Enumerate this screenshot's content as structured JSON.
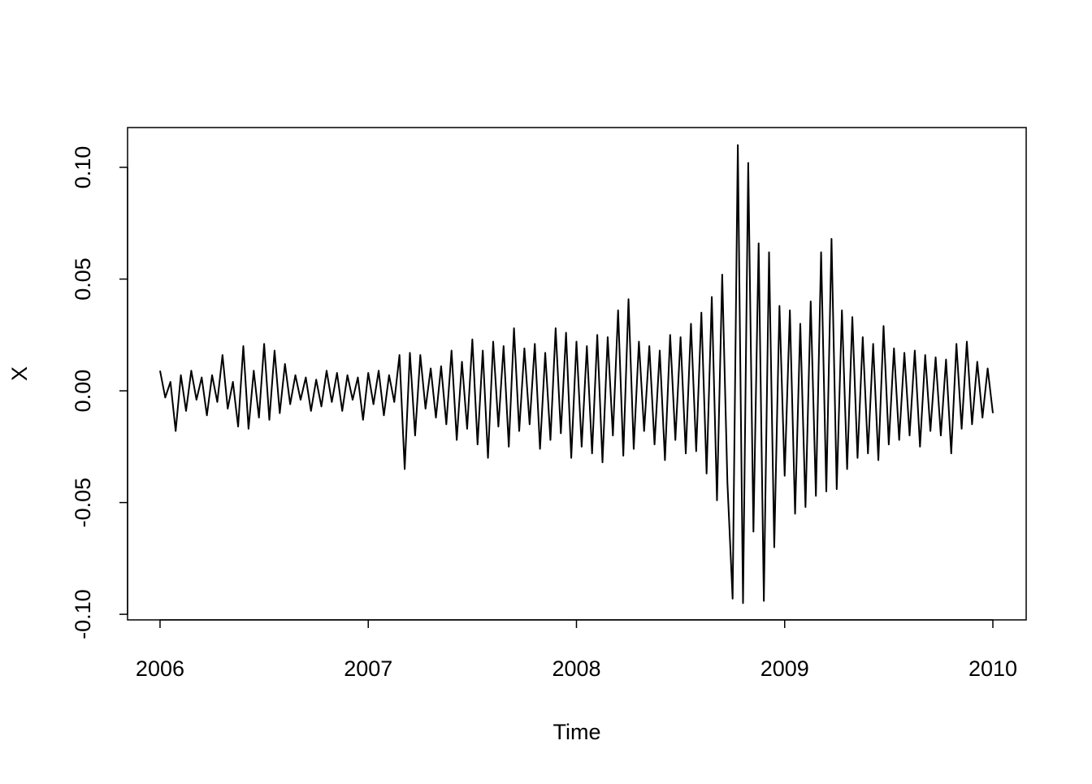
{
  "chart_data": {
    "type": "line",
    "x_label": "Time",
    "y_label": "X",
    "color": "#000000",
    "x": [
      2006,
      2006.025,
      2006.05,
      2006.075,
      2006.1,
      2006.125,
      2006.15,
      2006.175,
      2006.2,
      2006.225,
      2006.25,
      2006.275,
      2006.3,
      2006.325,
      2006.35,
      2006.375,
      2006.4,
      2006.425,
      2006.45,
      2006.475,
      2006.5,
      2006.525,
      2006.55,
      2006.575,
      2006.6,
      2006.625,
      2006.65,
      2006.675,
      2006.7,
      2006.725,
      2006.75,
      2006.775,
      2006.8,
      2006.825,
      2006.85,
      2006.875,
      2006.9,
      2006.925,
      2006.95,
      2006.975,
      2007,
      2007.025,
      2007.05,
      2007.075,
      2007.1,
      2007.125,
      2007.15,
      2007.175,
      2007.2,
      2007.225,
      2007.25,
      2007.275,
      2007.3,
      2007.325,
      2007.35,
      2007.375,
      2007.4,
      2007.425,
      2007.45,
      2007.475,
      2007.5,
      2007.525,
      2007.55,
      2007.575,
      2007.6,
      2007.625,
      2007.65,
      2007.675,
      2007.7,
      2007.725,
      2007.75,
      2007.775,
      2007.8,
      2007.825,
      2007.85,
      2007.875,
      2007.9,
      2007.925,
      2007.95,
      2007.975,
      2008,
      2008.025,
      2008.05,
      2008.075,
      2008.1,
      2008.125,
      2008.15,
      2008.175,
      2008.2,
      2008.225,
      2008.25,
      2008.275,
      2008.3,
      2008.325,
      2008.35,
      2008.375,
      2008.4,
      2008.425,
      2008.45,
      2008.475,
      2008.5,
      2008.525,
      2008.55,
      2008.575,
      2008.6,
      2008.625,
      2008.65,
      2008.675,
      2008.7,
      2008.725,
      2008.75,
      2008.775,
      2008.8,
      2008.825,
      2008.85,
      2008.875,
      2008.9,
      2008.925,
      2008.95,
      2008.975,
      2009,
      2009.025,
      2009.05,
      2009.075,
      2009.1,
      2009.125,
      2009.15,
      2009.175,
      2009.2,
      2009.225,
      2009.25,
      2009.275,
      2009.3,
      2009.325,
      2009.35,
      2009.375,
      2009.4,
      2009.425,
      2009.45,
      2009.475,
      2009.5,
      2009.525,
      2009.55,
      2009.575,
      2009.6,
      2009.625,
      2009.65,
      2009.675,
      2009.7,
      2009.725,
      2009.75,
      2009.775,
      2009.8,
      2009.825,
      2009.85,
      2009.875,
      2009.9,
      2009.925,
      2009.95,
      2009.975,
      2010
    ],
    "values": [
      0.009,
      -0.003,
      0.004,
      -0.018,
      0.007,
      -0.009,
      0.009,
      -0.004,
      0.006,
      -0.011,
      0.007,
      -0.005,
      0.016,
      -0.008,
      0.004,
      -0.016,
      0.02,
      -0.017,
      0.009,
      -0.012,
      0.021,
      -0.013,
      0.018,
      -0.01,
      0.012,
      -0.006,
      0.007,
      -0.004,
      0.006,
      -0.009,
      0.005,
      -0.007,
      0.009,
      -0.005,
      0.008,
      -0.009,
      0.007,
      -0.004,
      0.006,
      -0.013,
      0.008,
      -0.006,
      0.009,
      -0.011,
      0.007,
      -0.005,
      0.016,
      -0.035,
      0.017,
      -0.02,
      0.016,
      -0.008,
      0.01,
      -0.012,
      0.011,
      -0.015,
      0.018,
      -0.022,
      0.013,
      -0.017,
      0.023,
      -0.024,
      0.018,
      -0.03,
      0.022,
      -0.016,
      0.02,
      -0.025,
      0.028,
      -0.018,
      0.019,
      -0.015,
      0.021,
      -0.026,
      0.017,
      -0.022,
      0.028,
      -0.019,
      0.026,
      -0.03,
      0.022,
      -0.025,
      0.02,
      -0.028,
      0.025,
      -0.032,
      0.024,
      -0.02,
      0.036,
      -0.029,
      0.041,
      -0.026,
      0.022,
      -0.018,
      0.02,
      -0.024,
      0.018,
      -0.031,
      0.025,
      -0.022,
      0.024,
      -0.028,
      0.03,
      -0.027,
      0.035,
      -0.037,
      0.042,
      -0.049,
      0.052,
      -0.041,
      -0.093,
      0.11,
      -0.095,
      0.102,
      -0.063,
      0.066,
      -0.094,
      0.062,
      -0.07,
      0.038,
      -0.038,
      0.036,
      -0.055,
      0.03,
      -0.052,
      0.04,
      -0.047,
      0.062,
      -0.045,
      0.068,
      -0.044,
      0.036,
      -0.035,
      0.033,
      -0.03,
      0.024,
      -0.028,
      0.021,
      -0.031,
      0.029,
      -0.024,
      0.019,
      -0.022,
      0.017,
      -0.02,
      0.018,
      -0.025,
      0.016,
      -0.018,
      0.015,
      -0.02,
      0.014,
      -0.028,
      0.021,
      -0.017,
      0.022,
      -0.015,
      0.013,
      -0.012,
      0.01,
      -0.01
    ],
    "xlim": [
      2005.844,
      2010.16
    ],
    "xticks": [
      2006,
      2007,
      2008,
      2009,
      2010
    ],
    "ylim": [
      -0.1025,
      0.1178
    ],
    "yticks": [
      {
        "value": -0.1,
        "label": "-0.10"
      },
      -0.05,
      {
        "value": 0,
        "label": "0.00"
      },
      0.05,
      {
        "value": 0.1,
        "label": "0.10"
      }
    ]
  }
}
